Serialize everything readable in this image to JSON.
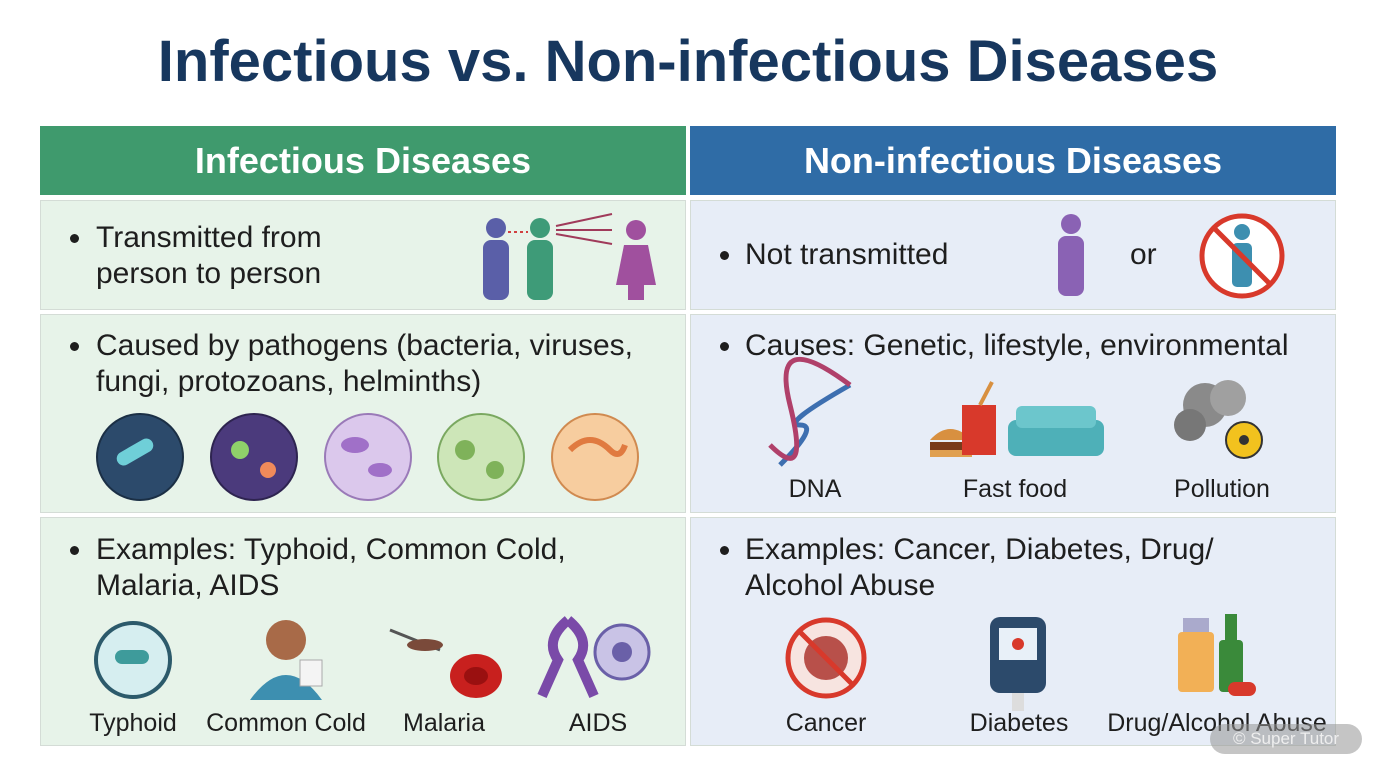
{
  "title": "Infectious vs. Non-infectious Diseases",
  "columns": [
    {
      "header": "Infectious Diseases",
      "rows": [
        {
          "lines": [
            "Transmitted from",
            "person to person"
          ]
        },
        {
          "lines": [
            "Caused by pathogens (bacteria, viruses,",
            "fungi, protozoans, helminths)"
          ]
        },
        {
          "lines": [
            "Examples: Typhoid, Common Cold,",
            "Malaria, AIDS"
          ],
          "captions": [
            "Typhoid",
            "Common Cold",
            "Malaria",
            "AIDS"
          ]
        }
      ]
    },
    {
      "header": "Non-infectious Diseases",
      "rows": [
        {
          "lines": [
            "Not transmitted"
          ],
          "connector": "or"
        },
        {
          "lines": [
            "Causes: Genetic, lifestyle, environmental"
          ],
          "captions": [
            "DNA",
            "Fast food",
            "Pollution"
          ]
        },
        {
          "lines": [
            "Examples: Cancer, Diabetes, Drug/",
            "Alcohol Abuse"
          ],
          "captions": [
            "Cancer",
            "Diabetes",
            "Drug/Alcohol Abuse"
          ]
        }
      ]
    }
  ],
  "watermark": "© Super Tutor"
}
